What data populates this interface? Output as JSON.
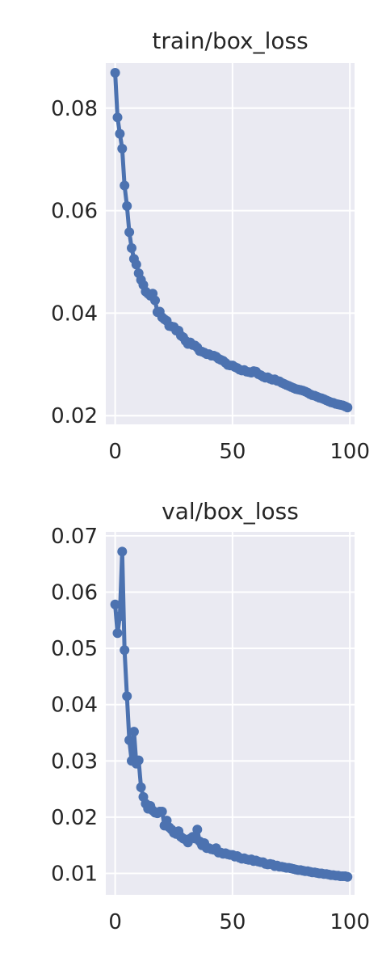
{
  "colors": {
    "background": "#eaeaf2",
    "grid": "#ffffff",
    "line": "#4c72b0",
    "text": "#262626"
  },
  "chart_data": [
    {
      "type": "line",
      "title": "train/box_loss",
      "xlabel": "",
      "ylabel": "",
      "grid": true,
      "marker": "circle",
      "xlim": [
        -4,
        102
      ],
      "ylim": [
        0.0183,
        0.0888
      ],
      "xticks": [
        0,
        50,
        100
      ],
      "yticks": [
        0.02,
        0.04,
        0.06,
        0.08
      ],
      "xtick_labels": [
        "0",
        "50",
        "100"
      ],
      "ytick_labels": [
        "0.02",
        "0.04",
        "0.06",
        "0.08"
      ],
      "series": [
        {
          "x": [
            0,
            1,
            2,
            3,
            4,
            5,
            6,
            7,
            8,
            9,
            10,
            11,
            12,
            13,
            14,
            15,
            16,
            17,
            18,
            19,
            20,
            21,
            22,
            23,
            24,
            25,
            26,
            27,
            28,
            29,
            30,
            31,
            32,
            33,
            34,
            35,
            36,
            37,
            38,
            39,
            40,
            41,
            42,
            43,
            44,
            45,
            46,
            47,
            48,
            49,
            50,
            51,
            52,
            53,
            54,
            55,
            56,
            57,
            58,
            59,
            60,
            61,
            62,
            63,
            64,
            65,
            66,
            67,
            68,
            69,
            70,
            71,
            72,
            73,
            74,
            75,
            76,
            77,
            78,
            79,
            80,
            81,
            82,
            83,
            84,
            85,
            86,
            87,
            88,
            89,
            90,
            91,
            92,
            93,
            94,
            95,
            96,
            97,
            98,
            99
          ],
          "y": [
            0.0869,
            0.0782,
            0.075,
            0.0721,
            0.0649,
            0.0609,
            0.0558,
            0.0527,
            0.0506,
            0.0495,
            0.0478,
            0.0465,
            0.0455,
            0.0442,
            0.0438,
            0.0434,
            0.0438,
            0.0425,
            0.0402,
            0.0403,
            0.0392,
            0.0388,
            0.0385,
            0.0375,
            0.0374,
            0.0373,
            0.0366,
            0.0366,
            0.0356,
            0.0353,
            0.0346,
            0.034,
            0.0343,
            0.0338,
            0.0337,
            0.0333,
            0.0326,
            0.0325,
            0.0323,
            0.032,
            0.032,
            0.0317,
            0.0317,
            0.0315,
            0.0311,
            0.0309,
            0.0307,
            0.0303,
            0.0299,
            0.0298,
            0.0298,
            0.0295,
            0.0293,
            0.029,
            0.0288,
            0.0289,
            0.0286,
            0.0285,
            0.0284,
            0.0287,
            0.0286,
            0.0281,
            0.0279,
            0.0276,
            0.0274,
            0.0275,
            0.0272,
            0.027,
            0.0271,
            0.0268,
            0.0267,
            0.0264,
            0.0262,
            0.026,
            0.0258,
            0.0256,
            0.0254,
            0.0252,
            0.0251,
            0.025,
            0.0249,
            0.0247,
            0.0245,
            0.0242,
            0.024,
            0.0239,
            0.0237,
            0.0235,
            0.0234,
            0.0232,
            0.023,
            0.0228,
            0.0226,
            0.0225,
            0.0223,
            0.0222,
            0.0221,
            0.022,
            0.0218,
            0.0216
          ]
        }
      ]
    },
    {
      "type": "line",
      "title": "val/box_loss",
      "xlabel": "",
      "ylabel": "",
      "grid": true,
      "marker": "circle",
      "xlim": [
        -4,
        102
      ],
      "ylim": [
        0.0062,
        0.0707
      ],
      "xticks": [
        0,
        50,
        100
      ],
      "yticks": [
        0.01,
        0.02,
        0.03,
        0.04,
        0.05,
        0.06,
        0.07
      ],
      "xtick_labels": [
        "0",
        "50",
        "100"
      ],
      "ytick_labels": [
        "0.01",
        "0.02",
        "0.03",
        "0.04",
        "0.05",
        "0.06",
        "0.07"
      ],
      "series": [
        {
          "x": [
            0,
            1,
            2,
            3,
            4,
            5,
            6,
            7,
            8,
            9,
            10,
            11,
            12,
            13,
            14,
            15,
            16,
            17,
            18,
            19,
            20,
            21,
            22,
            23,
            24,
            25,
            26,
            27,
            28,
            29,
            30,
            31,
            32,
            33,
            34,
            35,
            36,
            37,
            38,
            39,
            40,
            41,
            42,
            43,
            44,
            45,
            46,
            47,
            48,
            49,
            50,
            51,
            52,
            53,
            54,
            55,
            56,
            57,
            58,
            59,
            60,
            61,
            62,
            63,
            64,
            65,
            66,
            67,
            68,
            69,
            70,
            71,
            72,
            73,
            74,
            75,
            76,
            77,
            78,
            79,
            80,
            81,
            82,
            83,
            84,
            85,
            86,
            87,
            88,
            89,
            90,
            91,
            92,
            93,
            94,
            95,
            96,
            97,
            98,
            99
          ],
          "y": [
            0.0578,
            0.0527,
            0.0557,
            0.0672,
            0.0497,
            0.0415,
            0.0337,
            0.03,
            0.0352,
            0.0295,
            0.0301,
            0.0253,
            0.0236,
            0.0224,
            0.0215,
            0.022,
            0.0212,
            0.0208,
            0.0207,
            0.021,
            0.021,
            0.0185,
            0.0194,
            0.0182,
            0.0178,
            0.0172,
            0.017,
            0.0175,
            0.0165,
            0.0162,
            0.016,
            0.0155,
            0.0162,
            0.0165,
            0.0162,
            0.0178,
            0.0157,
            0.015,
            0.0154,
            0.0145,
            0.0145,
            0.0143,
            0.0142,
            0.0145,
            0.0137,
            0.0137,
            0.0135,
            0.0136,
            0.0134,
            0.0133,
            0.0133,
            0.013,
            0.0131,
            0.0128,
            0.0126,
            0.0127,
            0.0125,
            0.0124,
            0.0125,
            0.0122,
            0.0123,
            0.0121,
            0.012,
            0.012,
            0.0117,
            0.0116,
            0.0117,
            0.0116,
            0.0113,
            0.0114,
            0.0112,
            0.0112,
            0.0111,
            0.011,
            0.011,
            0.0109,
            0.0108,
            0.0107,
            0.0106,
            0.0106,
            0.0105,
            0.0104,
            0.0104,
            0.0103,
            0.0102,
            0.0102,
            0.0101,
            0.01,
            0.01,
            0.0099,
            0.0099,
            0.0098,
            0.0097,
            0.0097,
            0.0096,
            0.0096,
            0.0095,
            0.0095,
            0.0095,
            0.0094
          ]
        }
      ]
    }
  ]
}
